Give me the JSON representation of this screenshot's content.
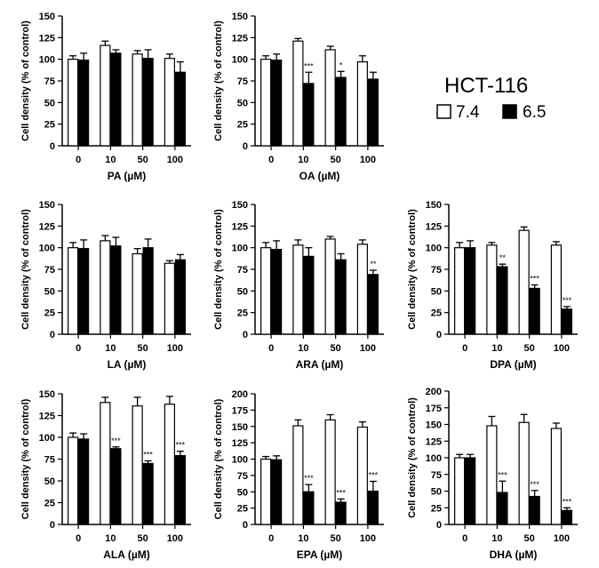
{
  "legend": {
    "title": "HCT-116",
    "items": [
      {
        "label": "7.4",
        "color": "#ffffff"
      },
      {
        "label": "6.5",
        "color": "#000000"
      }
    ]
  },
  "colors": {
    "ph74": "#ffffff",
    "ph65": "#000000",
    "stroke": "#000000"
  },
  "chart_data": [
    {
      "id": "PA",
      "type": "bar",
      "xlabel": "PA (µM)",
      "ylabel": "Cell density (% of control)",
      "categories": [
        "0",
        "10",
        "50",
        "100"
      ],
      "ylim": [
        0,
        150
      ],
      "yticks": [
        0,
        25,
        50,
        75,
        100,
        125,
        150
      ],
      "series": [
        {
          "name": "7.4",
          "values": [
            100,
            116,
            106,
            101
          ],
          "errors": [
            4,
            5,
            4,
            5
          ],
          "sig": [
            "",
            "",
            "",
            ""
          ]
        },
        {
          "name": "6.5",
          "values": [
            99,
            107,
            101,
            85
          ],
          "errors": [
            8,
            4,
            10,
            12
          ],
          "sig": [
            "",
            "",
            "",
            ""
          ]
        }
      ]
    },
    {
      "id": "OA",
      "type": "bar",
      "xlabel": "OA (µM)",
      "ylabel": "Cell density (% of control)",
      "categories": [
        "0",
        "10",
        "50",
        "100"
      ],
      "ylim": [
        0,
        150
      ],
      "yticks": [
        0,
        25,
        50,
        75,
        100,
        125,
        150
      ],
      "series": [
        {
          "name": "7.4",
          "values": [
            100,
            121,
            111,
            97
          ],
          "errors": [
            4,
            3,
            4,
            7
          ],
          "sig": [
            "",
            "",
            "",
            ""
          ]
        },
        {
          "name": "6.5",
          "values": [
            99,
            72,
            79,
            77
          ],
          "errors": [
            7,
            13,
            7,
            8
          ],
          "sig": [
            "",
            "***",
            "*",
            ""
          ]
        }
      ]
    },
    {
      "id": "LA",
      "type": "bar",
      "xlabel": "LA (µM)",
      "ylabel": "Cell density (% of control)",
      "categories": [
        "0",
        "10",
        "50",
        "100"
      ],
      "ylim": [
        0,
        150
      ],
      "yticks": [
        0,
        25,
        50,
        75,
        100,
        125,
        150
      ],
      "series": [
        {
          "name": "7.4",
          "values": [
            100,
            108,
            93,
            82
          ],
          "errors": [
            6,
            6,
            6,
            3
          ],
          "sig": [
            "",
            "",
            "",
            ""
          ]
        },
        {
          "name": "6.5",
          "values": [
            99,
            102,
            100,
            86
          ],
          "errors": [
            10,
            10,
            10,
            6
          ],
          "sig": [
            "",
            "",
            "",
            ""
          ]
        }
      ]
    },
    {
      "id": "ARA",
      "type": "bar",
      "xlabel": "ARA (µM)",
      "ylabel": "Cell density (% of control)",
      "categories": [
        "0",
        "10",
        "50",
        "100"
      ],
      "ylim": [
        0,
        150
      ],
      "yticks": [
        0,
        25,
        50,
        75,
        100,
        125,
        150
      ],
      "series": [
        {
          "name": "7.4",
          "values": [
            100,
            103,
            110,
            104
          ],
          "errors": [
            6,
            6,
            3,
            5
          ],
          "sig": [
            "",
            "",
            "",
            ""
          ]
        },
        {
          "name": "6.5",
          "values": [
            98,
            90,
            86,
            69
          ],
          "errors": [
            10,
            10,
            7,
            5
          ],
          "sig": [
            "",
            "",
            "",
            "**"
          ]
        }
      ]
    },
    {
      "id": "DPA",
      "type": "bar",
      "xlabel": "DPA (µM)",
      "ylabel": "Cell density (% of control)",
      "categories": [
        "0",
        "10",
        "50",
        "100"
      ],
      "ylim": [
        0,
        150
      ],
      "yticks": [
        0,
        25,
        50,
        75,
        100,
        125,
        150
      ],
      "series": [
        {
          "name": "7.4",
          "values": [
            100,
            103,
            120,
            103
          ],
          "errors": [
            6,
            3,
            4,
            4
          ],
          "sig": [
            "",
            "",
            "",
            ""
          ]
        },
        {
          "name": "6.5",
          "values": [
            100,
            78,
            53,
            29
          ],
          "errors": [
            8,
            3,
            4,
            3
          ],
          "sig": [
            "",
            "**",
            "***",
            "***"
          ]
        }
      ]
    },
    {
      "id": "ALA",
      "type": "bar",
      "xlabel": "ALA (µM)",
      "ylabel": "Cell density (% of control)",
      "categories": [
        "0",
        "10",
        "50",
        "100"
      ],
      "ylim": [
        0,
        150
      ],
      "yticks": [
        0,
        25,
        50,
        75,
        100,
        125,
        150
      ],
      "series": [
        {
          "name": "7.4",
          "values": [
            100,
            140,
            136,
            138
          ],
          "errors": [
            5,
            6,
            10,
            9
          ],
          "sig": [
            "",
            "",
            "",
            ""
          ]
        },
        {
          "name": "6.5",
          "values": [
            98,
            87,
            70,
            79
          ],
          "errors": [
            6,
            2,
            3,
            5
          ],
          "sig": [
            "",
            "***",
            "***",
            "***"
          ]
        }
      ]
    },
    {
      "id": "EPA",
      "type": "bar",
      "xlabel": "EPA (µM)",
      "ylabel": "Cell density (% of control)",
      "categories": [
        "0",
        "10",
        "50",
        "100"
      ],
      "ylim": [
        0,
        200
      ],
      "yticks": [
        0,
        25,
        50,
        75,
        100,
        125,
        150,
        175,
        200
      ],
      "series": [
        {
          "name": "7.4",
          "values": [
            100,
            151,
            160,
            149
          ],
          "errors": [
            4,
            9,
            8,
            8
          ],
          "sig": [
            "",
            "",
            "",
            ""
          ]
        },
        {
          "name": "6.5",
          "values": [
            99,
            50,
            34,
            51
          ],
          "errors": [
            6,
            11,
            5,
            15
          ],
          "sig": [
            "",
            "***",
            "***",
            "***"
          ]
        }
      ]
    },
    {
      "id": "DHA",
      "type": "bar",
      "xlabel": "DHA (µM)",
      "ylabel": "Cell density (% of control)",
      "categories": [
        "0",
        "10",
        "50",
        "100"
      ],
      "ylim": [
        0,
        200
      ],
      "yticks": [
        0,
        25,
        50,
        75,
        100,
        125,
        150,
        175,
        200
      ],
      "series": [
        {
          "name": "7.4",
          "values": [
            100,
            148,
            153,
            144
          ],
          "errors": [
            5,
            14,
            12,
            8
          ],
          "sig": [
            "",
            "",
            "",
            ""
          ]
        },
        {
          "name": "6.5",
          "values": [
            100,
            48,
            42,
            21
          ],
          "errors": [
            5,
            17,
            9,
            4
          ],
          "sig": [
            "",
            "***",
            "***",
            "***"
          ]
        }
      ]
    }
  ]
}
